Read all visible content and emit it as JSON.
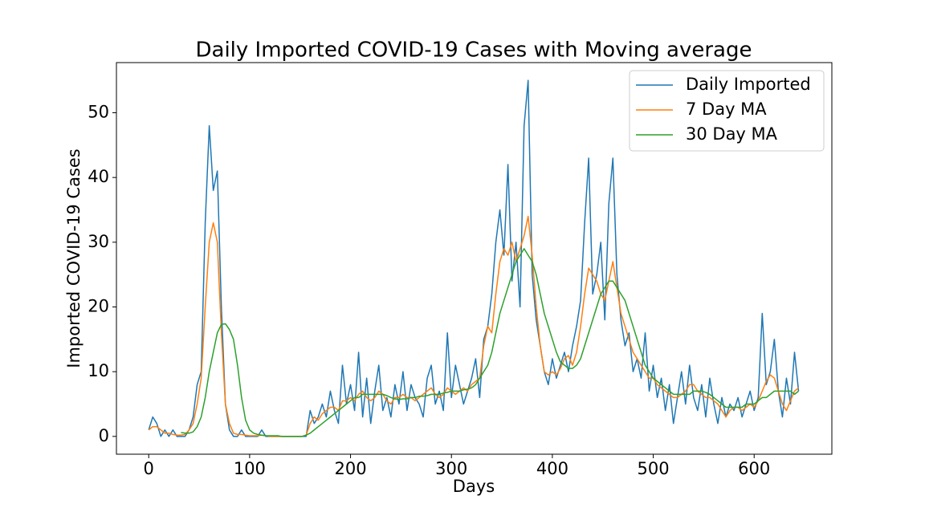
{
  "chart_data": {
    "type": "line",
    "title": "Daily Imported COVID-19 Cases with Moving average",
    "x_label": "Days",
    "y_label": "Imported COVID-19 Cases",
    "xlim": [
      -32,
      677
    ],
    "ylim": [
      -2.75,
      57.75
    ],
    "xticks": [
      0,
      100,
      200,
      300,
      400,
      500,
      600
    ],
    "yticks": [
      0,
      10,
      20,
      30,
      40,
      50
    ],
    "grid": false,
    "legend": "upper right",
    "x": [
      0,
      4,
      8,
      12,
      16,
      20,
      24,
      28,
      32,
      36,
      40,
      44,
      48,
      52,
      56,
      60,
      64,
      68,
      72,
      76,
      80,
      84,
      88,
      92,
      96,
      100,
      104,
      108,
      112,
      116,
      120,
      124,
      128,
      132,
      136,
      140,
      144,
      148,
      152,
      156,
      160,
      164,
      168,
      172,
      176,
      180,
      184,
      188,
      192,
      196,
      200,
      204,
      208,
      212,
      216,
      220,
      224,
      228,
      232,
      236,
      240,
      244,
      248,
      252,
      256,
      260,
      264,
      268,
      272,
      276,
      280,
      284,
      288,
      292,
      296,
      300,
      304,
      308,
      312,
      316,
      320,
      324,
      328,
      332,
      336,
      340,
      344,
      348,
      352,
      356,
      360,
      364,
      368,
      372,
      376,
      380,
      384,
      388,
      392,
      396,
      400,
      404,
      408,
      412,
      416,
      420,
      424,
      428,
      432,
      436,
      440,
      444,
      448,
      452,
      456,
      460,
      464,
      468,
      472,
      476,
      480,
      484,
      488,
      492,
      496,
      500,
      504,
      508,
      512,
      516,
      520,
      524,
      528,
      532,
      536,
      540,
      544,
      548,
      552,
      556,
      560,
      564,
      568,
      572,
      576,
      580,
      584,
      588,
      592,
      596,
      600,
      604,
      608,
      612,
      616,
      620,
      624,
      628,
      632,
      636,
      640,
      644
    ],
    "series": [
      {
        "name": "Daily Imported",
        "color": "#1f77b4",
        "values": [
          1,
          3,
          2,
          0,
          1,
          0,
          1,
          0,
          0,
          0,
          1,
          3,
          8,
          10,
          33,
          48,
          38,
          41,
          20,
          5,
          1,
          0,
          0,
          1,
          0,
          0,
          0,
          0,
          1,
          0,
          0,
          0,
          0,
          0,
          0,
          0,
          0,
          0,
          0,
          0,
          4,
          2,
          3,
          5,
          3,
          7,
          4,
          2,
          11,
          5,
          8,
          4,
          13,
          3,
          9,
          2,
          7,
          11,
          4,
          6,
          3,
          8,
          5,
          10,
          4,
          8,
          6,
          5,
          3,
          9,
          11,
          5,
          7,
          4,
          16,
          6,
          11,
          8,
          5,
          7,
          9,
          12,
          6,
          15,
          17,
          22,
          30,
          35,
          28,
          42,
          24,
          30,
          20,
          48,
          55,
          25,
          18,
          14,
          10,
          8,
          12,
          9,
          11,
          13,
          10,
          14,
          17,
          21,
          33,
          43,
          22,
          25,
          30,
          18,
          36,
          43,
          25,
          18,
          14,
          16,
          10,
          12,
          9,
          16,
          7,
          11,
          6,
          9,
          4,
          8,
          2,
          6,
          10,
          5,
          11,
          6,
          4,
          8,
          3,
          9,
          5,
          2,
          6,
          3,
          5,
          4,
          6,
          3,
          5,
          7,
          4,
          6,
          19,
          8,
          10,
          15,
          7,
          3,
          9,
          5,
          13,
          7
        ]
      },
      {
        "name": "7 Day MA",
        "color": "#ff7f0e",
        "values": [
          1,
          1.5,
          1.5,
          1,
          0.5,
          0.5,
          0.3,
          0.2,
          0.2,
          0.3,
          1,
          2,
          5,
          9,
          20,
          30,
          33,
          30,
          16,
          5,
          2,
          0.5,
          0.3,
          0.3,
          0.2,
          0.1,
          0.1,
          0.1,
          0.2,
          0.1,
          0,
          0,
          0,
          0,
          0,
          0,
          0,
          0,
          0,
          0.2,
          2,
          3,
          2.5,
          3.5,
          4,
          4.5,
          4.5,
          4,
          5.5,
          5.5,
          6,
          5.5,
          6.5,
          7,
          6,
          5.5,
          6,
          7,
          6.5,
          5.5,
          5,
          6,
          6,
          6.5,
          6,
          6,
          5.5,
          6,
          6.5,
          7,
          7.5,
          6.5,
          6,
          6.5,
          7.5,
          7,
          6.5,
          7,
          7.5,
          7,
          8,
          8.5,
          9,
          14,
          17,
          16,
          22,
          27,
          29,
          28,
          30,
          27,
          29,
          31,
          34,
          28,
          20,
          14,
          10,
          9.5,
          10,
          9.5,
          10.5,
          12,
          12.5,
          11,
          13,
          17,
          22,
          26,
          25,
          24,
          22,
          21,
          24,
          27,
          23,
          19,
          17,
          15,
          13,
          12,
          11,
          10,
          9,
          9,
          8,
          7.5,
          7,
          6.5,
          6,
          6,
          6.5,
          7,
          8,
          8,
          7,
          6.5,
          6,
          6,
          5.5,
          5,
          4,
          3,
          4,
          4.5,
          4.5,
          4,
          4.5,
          5,
          4.5,
          5.5,
          7,
          8.5,
          9.5,
          9,
          7,
          5,
          4,
          5.5,
          7,
          7.5
        ]
      },
      {
        "name": "30 Day MA",
        "color": "#2ca02c",
        "values": [
          null,
          null,
          null,
          null,
          null,
          null,
          null,
          null,
          0.6,
          0.5,
          0.5,
          0.7,
          1.5,
          3,
          6,
          10,
          13,
          16,
          17.3,
          17.4,
          16.5,
          15,
          11,
          6,
          2.5,
          1,
          0.5,
          0.3,
          0.2,
          0.1,
          0.1,
          0.1,
          0.1,
          0,
          0,
          0,
          0,
          0,
          0,
          0.2,
          0.5,
          1,
          1.5,
          2,
          2.5,
          3,
          3.5,
          4,
          4.5,
          5,
          5.5,
          6,
          6,
          6.5,
          6.5,
          6.5,
          6.5,
          6.5,
          6.5,
          6.3,
          6,
          5.8,
          5.7,
          5.8,
          5.8,
          6,
          6,
          6.2,
          6.2,
          6.3,
          6.5,
          6.5,
          6.5,
          6.7,
          6.8,
          7,
          7,
          7,
          7.2,
          7.3,
          7.5,
          8,
          9,
          10,
          11,
          13,
          16,
          19,
          21,
          23,
          25,
          27,
          28,
          29,
          28,
          27,
          25,
          22,
          19,
          17,
          15,
          13,
          11.5,
          11,
          10.5,
          10.5,
          11,
          12,
          14,
          16,
          18,
          20,
          22,
          23,
          24,
          24,
          23,
          22,
          21,
          19,
          17,
          15,
          13,
          11,
          10,
          9,
          8.5,
          8,
          7.5,
          7,
          6.5,
          6.5,
          6.5,
          6.5,
          6.5,
          7,
          7,
          7,
          6.8,
          6.5,
          6,
          5.5,
          5,
          4.5,
          4.5,
          4.5,
          4.5,
          4.5,
          5,
          5,
          5,
          5.5,
          6,
          6,
          6.5,
          7,
          7,
          7,
          7,
          7,
          6.5,
          7
        ]
      }
    ]
  }
}
